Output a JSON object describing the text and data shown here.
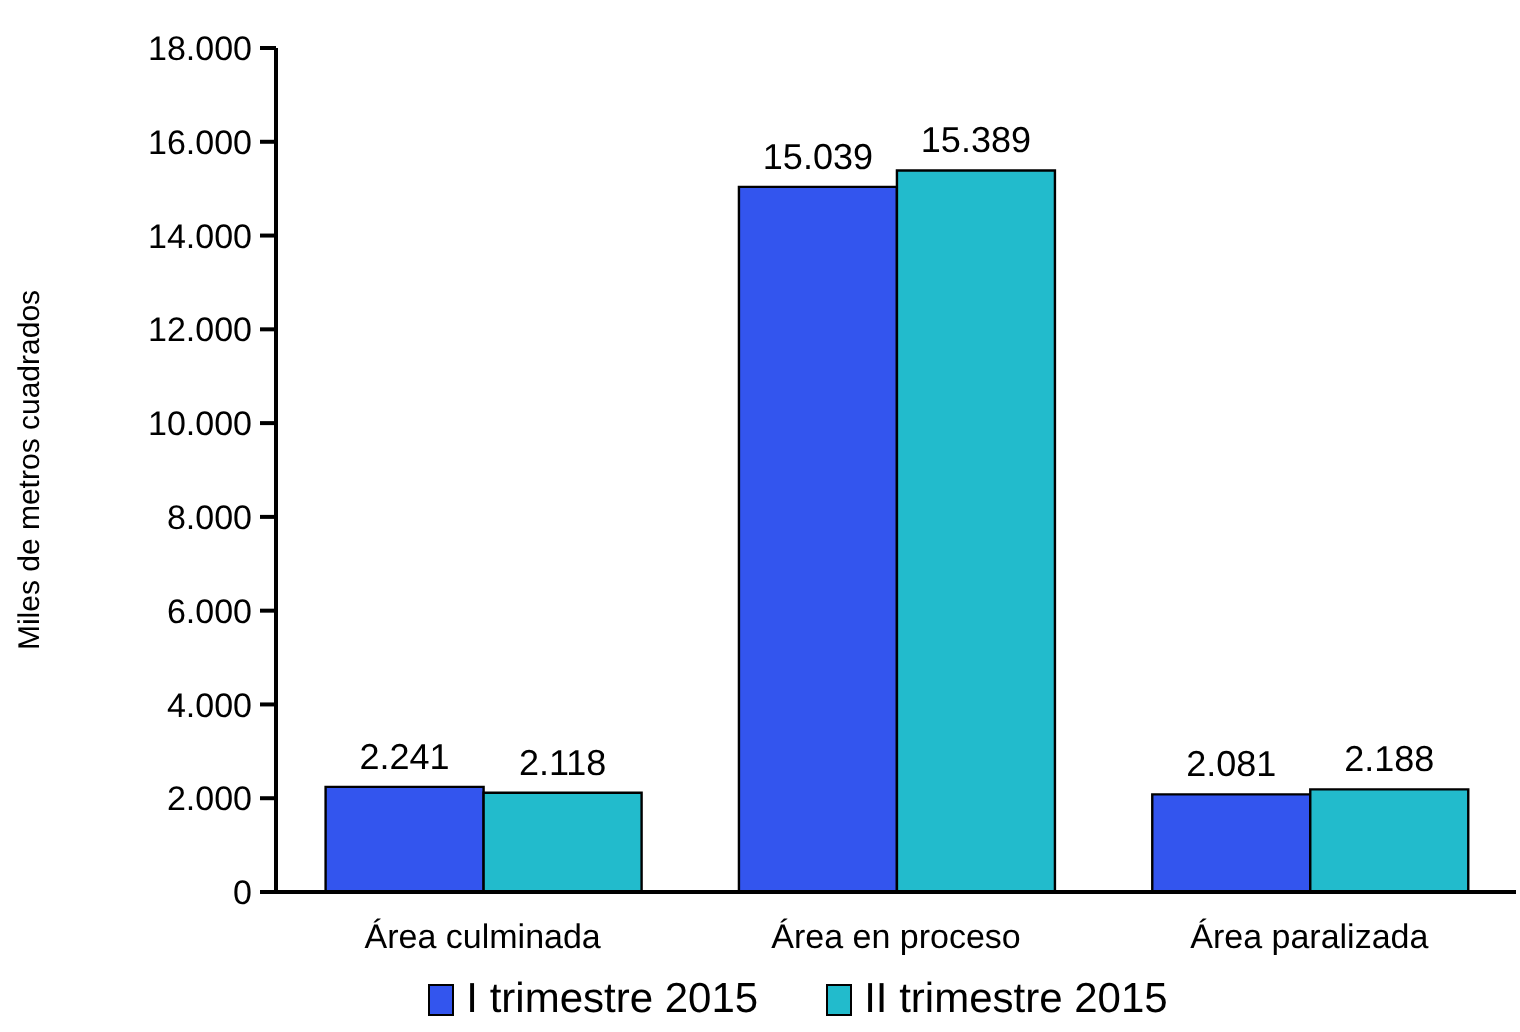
{
  "chart_data": {
    "type": "bar",
    "ylabel": "Miles de metros cuadrados",
    "categories": [
      "Área culminada",
      "Área en proceso",
      "Área paralizada"
    ],
    "series": [
      {
        "name": "I trimestre 2015",
        "color": "#3355ee",
        "values": [
          2241,
          15039,
          2081
        ],
        "value_labels": [
          "2.241",
          "15.039",
          "2.081"
        ]
      },
      {
        "name": "II trimestre 2015",
        "color": "#22bbcc",
        "values": [
          2118,
          15389,
          2188
        ],
        "value_labels": [
          "2.118",
          "15.389",
          "2.188"
        ]
      }
    ],
    "ylim": [
      0,
      18000
    ],
    "yticks": [
      0,
      {
        "value": 2000,
        "label": "2.000"
      },
      {
        "value": 4000,
        "label": "4.000"
      },
      {
        "value": 6000,
        "label": "6.000"
      },
      {
        "value": 8000,
        "label": "8.000"
      },
      {
        "value": 10000,
        "label": "10.000"
      },
      {
        "value": 12000,
        "label": "12.000"
      },
      {
        "value": 14000,
        "label": "14.000"
      },
      {
        "value": 16000,
        "label": "16.000"
      },
      {
        "value": 18000,
        "label": "18.000"
      }
    ],
    "grid": false,
    "legend": "bottom"
  }
}
